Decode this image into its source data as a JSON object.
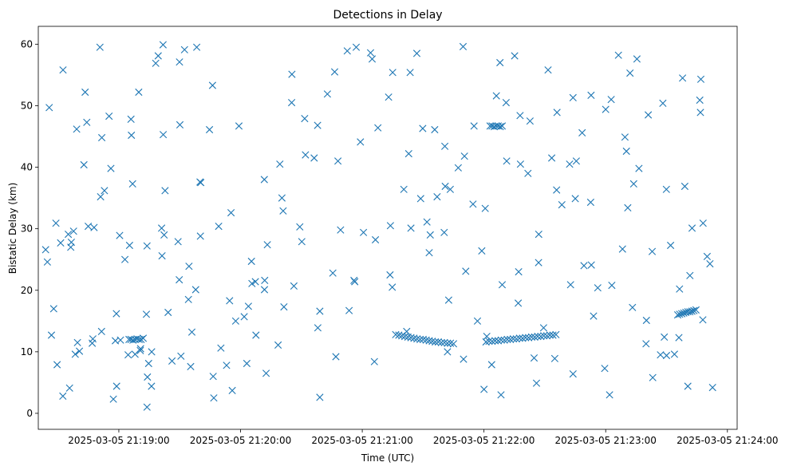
{
  "chart_data": {
    "type": "scatter",
    "title": "Detections in Delay",
    "xlabel": "Time (UTC)",
    "ylabel": "Bistatic Delay (km)",
    "x_ticks": [
      "2025-03-05 21:19:00",
      "2025-03-05 21:20:00",
      "2025-03-05 21:21:00",
      "2025-03-05 21:22:00",
      "2025-03-05 21:23:00",
      "2025-03-05 21:24:00"
    ],
    "x_ticks_seconds_of_day": [
      76740,
      76800,
      76860,
      76920,
      76980,
      77040
    ],
    "y_ticks": [
      0,
      10,
      20,
      30,
      40,
      50,
      60
    ],
    "xlim_seconds_of_day": [
      76700.3,
      77044.8
    ],
    "ylim": [
      -2.6,
      62.9
    ],
    "marker": "x",
    "color": "#1f77b4",
    "grid": false,
    "legend": "none",
    "series": [
      {
        "x_seconds_of_day": [
          76715.7,
          76717.7,
          76719.6,
          76727.2,
          76732.9,
          76737.3,
          76740.8,
          76744.6,
          76748.0,
          76750.6,
          76754.1,
          76756.2,
          76756.1,
          76761.3,
          76761.1,
          76762.8,
          76769.9,
          76772.4,
          76774.3,
          76776.0,
          76780.4,
          76789.2,
          76797.6,
          76805.4,
          76807.3,
          76811.8,
          76821.0,
          76826.3,
          76836.3,
          76842.8,
          76849.3,
          76856.3,
          76864.1,
          76873.0,
          76883.6,
          76889.8,
          76896.9,
          76900.7,
          76903.4,
          76910.4,
          76915.1,
          76920.6,
          76926.1,
          76931.2,
          76937.1,
          76941.7,
          76946.9,
          76953.4,
          76962.2,
          76963.9,
          76968.4,
          76972.8,
          76980.0,
          76988.3,
          76990.2,
          76993.8,
          76995.4,
          77002.9,
          77008.2,
          77012.0,
          77016.1,
          77021.5,
          77026.7,
          77030.0,
          76703.9,
          76705.7,
          76709.0,
          76712.5,
          76716.6,
          76720.6,
          76724.2,
          76727.8,
          76731.0,
          76735.2,
          76738.9,
          76743.0,
          76746.8,
          76750.7,
          76753.6,
          76758.2,
          76762.3,
          76766.2,
          76770.6,
          76775.4,
          76780.0,
          76784.7,
          76790.3,
          76795.9,
          76801.8,
          76807.6,
          76813.2,
          76819.4,
          76825.3,
          76831.6,
          76838.0,
          76845.5,
          76852.6,
          76859.1,
          76866.5,
          76873.7,
          76880.5,
          76886.9,
          76893.5,
          76900.4,
          76907.3,
          76914.6,
          76921.4,
          76928.4,
          76935.1,
          76942.7,
          76949.4,
          76955.8,
          76962.7,
          76969.3,
          76976.1,
          76982.7,
          76989.5,
          76996.4,
          77003.2,
          77009.9,
          77016.4,
          77022.6,
          77027.9,
          77032.7,
          76704.8,
          76707.9,
          76711.3,
          76715.1,
          76719.2,
          76722.8,
          76726.9,
          76731.5,
          76736.1,
          76740.4,
          76745.3,
          76749.8,
          76754.7,
          76759.4,
          76764.3,
          76769.2,
          76774.6,
          76780.2,
          76786.5,
          76793.1,
          76799.2,
          76805.6,
          76811.9,
          76818.5,
          76825.2,
          76832.0,
          76839.1,
          76846.4,
          76853.5,
          76860.6,
          76867.7,
          76874.8,
          76881.9,
          76888.8,
          76895.7,
          76902.6,
          76909.7,
          76916.8,
          76923.8,
          76930.9,
          76937.8,
          76944.7,
          76951.6,
          76958.4,
          76965.5,
          76972.6,
          76979.5,
          76986.3,
          76993.2,
          77000.1,
          77007.0,
          77013.9,
          77020.5,
          77026.4,
          77031.4,
          76706.8,
          76712.4,
          76718.5,
          76724.9,
          76731.6,
          76738.8,
          76746.2,
          76753.9,
          76761.8,
          76769.8,
          76777.9,
          76786.2,
          76794.6,
          76803.1,
          76811.7,
          76820.4,
          76829.2,
          76838.1,
          76847.0,
          76855.9,
          76864.9,
          76873.9,
          76882.9,
          76891.9,
          76900.9,
          76909.9,
          76918.9,
          76927.9,
          76936.9,
          76945.9,
          76954.9,
          76963.9,
          76972.9,
          76981.9,
          76990.9,
          76999.9,
          77008.9,
          77017.9,
          77026.9,
          76709.6,
          76716.3,
          76723.4,
          76730.7,
          76738.3,
          76746.0,
          76753.9,
          76761.9,
          76770.1,
          76778.4,
          76786.8,
          76795.3,
          76803.9,
          76812.6,
          76821.4,
          76830.2,
          76839.1,
          76848.0,
          76857.0,
          76866.0,
          76875.0,
          76884.0,
          76893.0,
          76902.0,
          76911.0,
          76920.0,
          76929.0,
          76938.0,
          76947.0,
          76956.0,
          76965.0,
          76974.0,
          76983.0,
          76992.0,
          77001.0,
          77010.0,
          77019.0,
          77028.0,
          76745.0,
          76746.0,
          76747.0,
          76748.0,
          76749.0,
          76750.0,
          76751.0,
          76752.0,
          76876.5,
          76878.0,
          76879.5,
          76881.0,
          76882.5,
          76884.0,
          76885.5,
          76887.0,
          76888.5,
          76890.0,
          76891.5,
          76893.0,
          76894.5,
          76896.0,
          76897.5,
          76899.0,
          76900.5,
          76902.0,
          76903.5,
          76905.0,
          76921.0,
          76922.5,
          76924.0,
          76925.5,
          76927.0,
          76928.5,
          76930.0,
          76931.5,
          76933.0,
          76934.5,
          76936.0,
          76937.5,
          76939.0,
          76940.5,
          76942.0,
          76943.5,
          76945.0,
          76946.5,
          76948.0,
          76949.5,
          76951.0,
          76952.5,
          76954.0,
          76955.5,
          76923.0,
          76924.0,
          76925.0,
          76926.0,
          76927.0,
          76928.0,
          76929.0,
          77015.5,
          77016.5,
          77017.5,
          77018.5,
          77019.5,
          77020.5,
          77021.5,
          77022.5,
          77023.5,
          77024.5
        ],
        "y": [
          4.1,
          29.6,
          11.5,
          12.1,
          36.2,
          2.3,
          11.9,
          9.5,
          9.6,
          10.2,
          5.9,
          10.0,
          4.4,
          25.6,
          30.1,
          36.2,
          57.1,
          59.1,
          18.5,
          13.2,
          37.5,
          30.4,
          15.0,
          24.7,
          21.4,
          20.1,
          32.9,
          20.7,
          41.5,
          51.9,
          29.8,
          21.4,
          58.6,
          51.4,
          55.4,
          46.3,
          35.2,
          43.4,
          36.4,
          41.8,
          46.7,
          33.3,
          51.6,
          41.0,
          23.0,
          39.0,
          24.5,
          41.5,
          40.5,
          51.3,
          45.6,
          51.7,
          49.4,
          26.7,
          42.6,
          37.3,
          57.6,
          26.3,
          50.4,
          27.3,
          12.3,
          22.4,
          48.9,
          25.5,
          26.6,
          49.7,
          30.9,
          55.8,
          27.8,
          10.1,
          47.3,
          30.2,
          35.2,
          48.3,
          4.4,
          25.0,
          37.3,
          10.5,
          16.1,
          56.9,
          29.0,
          8.5,
          9.3,
          7.6,
          37.6,
          46.1,
          10.6,
          3.7,
          15.7,
          12.7,
          27.4,
          40.5,
          55.1,
          47.9,
          46.8,
          22.8,
          58.9,
          44.1,
          28.2,
          22.5,
          36.4,
          58.5,
          29.0,
          29.4,
          39.9,
          34.0,
          12.5,
          3.0,
          58.1,
          47.5,
          13.9,
          36.3,
          20.9,
          24.0,
          20.4,
          51.0,
          44.9,
          39.8,
          5.8,
          36.4,
          20.2,
          30.1,
          15.2,
          4.2,
          24.6,
          17.0,
          27.7,
          29.1,
          46.2,
          40.4,
          11.4,
          13.3,
          39.8,
          28.9,
          27.3,
          52.2,
          8.1,
          58.1,
          16.4,
          27.9,
          23.9,
          28.8,
          6.0,
          7.8,
          46.7,
          21.1,
          21.6,
          11.1,
          50.5,
          42.0,
          16.6,
          55.5,
          16.7,
          29.4,
          46.4,
          20.5,
          13.3,
          34.9,
          46.1,
          18.4,
          59.6,
          15.0,
          7.9,
          50.5,
          48.4,
          9.0,
          55.8,
          33.9,
          41.0,
          34.3,
          7.3,
          58.2,
          17.2,
          15.1,
          9.5,
          9.6,
          4.4,
          50.9,
          24.3,
          12.7,
          2.8,
          9.6,
          30.4,
          44.8,
          16.2,
          45.2,
          27.2,
          59.9,
          21.7,
          20.1,
          53.3,
          18.3,
          8.1,
          38.0,
          35.0,
          30.3,
          13.9,
          9.2,
          21.6,
          57.6,
          30.5,
          42.2,
          31.1,
          36.9,
          8.8,
          26.4,
          57.0,
          17.9,
          4.9,
          8.9,
          6.4,
          24.1,
          3.0,
          33.4,
          11.3,
          12.4,
          54.5,
          54.3,
          7.9,
          27.0,
          52.2,
          59.5,
          11.8,
          47.8,
          1.0,
          45.3,
          46.9,
          59.5,
          2.5,
          32.6,
          17.4,
          6.5,
          17.3,
          27.9,
          2.6,
          41.0,
          59.5,
          8.4,
          55.4,
          30.1,
          26.1,
          10.0,
          23.1,
          3.9,
          20.9,
          40.5,
          29.1,
          48.9,
          34.9,
          15.8,
          20.8,
          55.3,
          48.5,
          9.4,
          36.9,
          30.9,
          12.0,
          12.0,
          11.9,
          12.0,
          12.1,
          12.0,
          12.0,
          12.2,
          12.8,
          12.7,
          12.6,
          12.5,
          12.4,
          12.3,
          12.2,
          12.1,
          12.0,
          12.0,
          11.9,
          11.8,
          11.7,
          11.6,
          11.6,
          11.5,
          11.5,
          11.4,
          11.4,
          11.3,
          11.6,
          11.7,
          11.7,
          11.8,
          11.8,
          11.9,
          11.9,
          12.0,
          12.0,
          12.1,
          12.1,
          12.2,
          12.2,
          12.3,
          12.3,
          12.4,
          12.4,
          12.5,
          12.5,
          12.6,
          12.6,
          12.7,
          12.7,
          12.8,
          46.7,
          46.7,
          46.6,
          46.7,
          46.7,
          46.6,
          46.7,
          16.0,
          16.1,
          16.2,
          16.3,
          16.4,
          16.5,
          16.5,
          16.6,
          16.7,
          16.8
        ]
      }
    ]
  }
}
